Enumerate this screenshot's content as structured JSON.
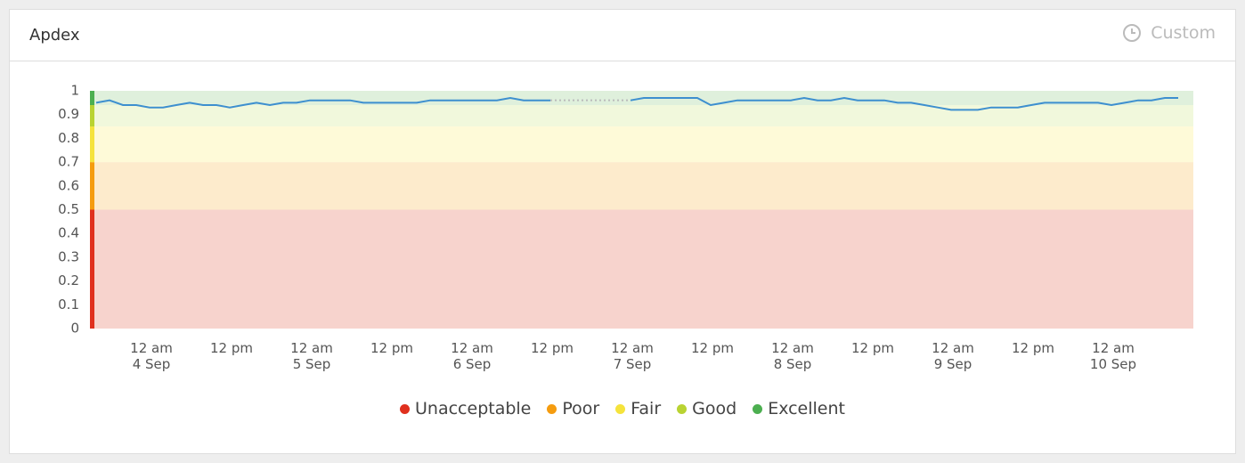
{
  "header": {
    "title": "Apdex",
    "button": "Custom"
  },
  "chart_data": {
    "type": "line",
    "categories": [
      null,
      null,
      null,
      null,
      "12 am\n4 Sep",
      null,
      null,
      null,
      null,
      null,
      "12 pm",
      null,
      null,
      null,
      null,
      null,
      "12 am\n5 Sep",
      null,
      null,
      null,
      null,
      null,
      "12 pm",
      null,
      null,
      null,
      null,
      null,
      "12 am\n6 Sep",
      null,
      null,
      null,
      null,
      null,
      "12 pm",
      null,
      null,
      null,
      null,
      null,
      "12 am\n7 Sep",
      null,
      null,
      null,
      null,
      null,
      "12 pm",
      null,
      null,
      null,
      null,
      null,
      "12 am\n8 Sep",
      null,
      null,
      null,
      null,
      null,
      "12 pm",
      null,
      null,
      null,
      null,
      null,
      "12 am\n9 Sep",
      null,
      null,
      null,
      null,
      null,
      "12 pm",
      null,
      null,
      null,
      null,
      null,
      "12 am\n10 Sep",
      null,
      null,
      null,
      null,
      null
    ],
    "series": [
      {
        "color": "#3d8fcf",
        "values": [
          0.95,
          0.96,
          0.94,
          0.94,
          0.93,
          0.93,
          0.94,
          0.95,
          0.94,
          0.94,
          0.93,
          0.94,
          0.95,
          0.94,
          0.95,
          0.95,
          0.96,
          0.96,
          0.96,
          0.96,
          0.95,
          0.95,
          0.95,
          0.95,
          0.95,
          0.96,
          0.96,
          0.96,
          0.96,
          0.96,
          0.96,
          0.97,
          0.96,
          0.96,
          0.96,
          null,
          null,
          null,
          null,
          null,
          0.96,
          0.97,
          0.97,
          0.97,
          0.97,
          0.97,
          0.94,
          0.95,
          0.96,
          0.96,
          0.96,
          0.96,
          0.96,
          0.97,
          0.96,
          0.96,
          0.97,
          0.96,
          0.96,
          0.96,
          0.95,
          0.95,
          0.94,
          0.93,
          0.92,
          0.92,
          0.92,
          0.93,
          0.93,
          0.93,
          0.94,
          0.95,
          0.95,
          0.95,
          0.95,
          0.95,
          0.94,
          0.95,
          0.96,
          0.96,
          0.97,
          0.97
        ]
      }
    ],
    "ylim": [
      0,
      1
    ],
    "yticks": [
      0,
      0.1,
      0.2,
      0.3,
      0.4,
      0.5,
      0.6,
      0.7,
      0.8,
      0.9,
      1
    ],
    "bands": [
      {
        "name": "Unacceptable",
        "from": 0,
        "to": 0.5,
        "color": "#e0301e",
        "fill": "#f7d3cd"
      },
      {
        "name": "Poor",
        "from": 0.5,
        "to": 0.7,
        "color": "#f59c0f",
        "fill": "#fdebcc"
      },
      {
        "name": "Fair",
        "from": 0.7,
        "to": 0.85,
        "color": "#f5e33c",
        "fill": "#fefad8"
      },
      {
        "name": "Good",
        "from": 0.85,
        "to": 0.94,
        "color": "#b9d332",
        "fill": "#f1f8dc"
      },
      {
        "name": "Excellent",
        "from": 0.94,
        "to": 1,
        "color": "#4caf50",
        "fill": "#dff0dc"
      }
    ]
  }
}
